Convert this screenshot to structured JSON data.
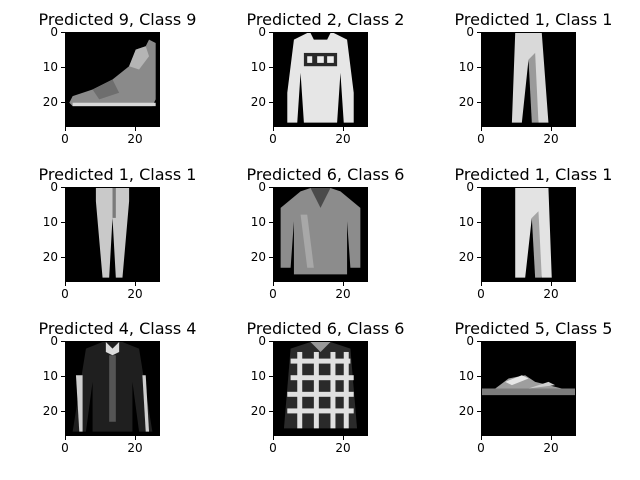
{
  "figure": {
    "panels": [
      {
        "title": "Predicted 9, Class 9",
        "item": "ankle-boot"
      },
      {
        "title": "Predicted 2, Class 2",
        "item": "pullover-lee"
      },
      {
        "title": "Predicted 1, Class 1",
        "item": "trouser"
      },
      {
        "title": "Predicted 1, Class 1",
        "item": "trouser-narrow"
      },
      {
        "title": "Predicted 6, Class 6",
        "item": "shirt-dark"
      },
      {
        "title": "Predicted 1, Class 1",
        "item": "trouser-bright"
      },
      {
        "title": "Predicted 4, Class 4",
        "item": "coat"
      },
      {
        "title": "Predicted 6, Class 6",
        "item": "plaid-shirt"
      },
      {
        "title": "Predicted 5, Class 5",
        "item": "sandal"
      }
    ],
    "y_ticks": [
      "0",
      "10",
      "20"
    ],
    "x_ticks": [
      "0",
      "20"
    ],
    "axis_range": [
      0,
      27
    ]
  }
}
